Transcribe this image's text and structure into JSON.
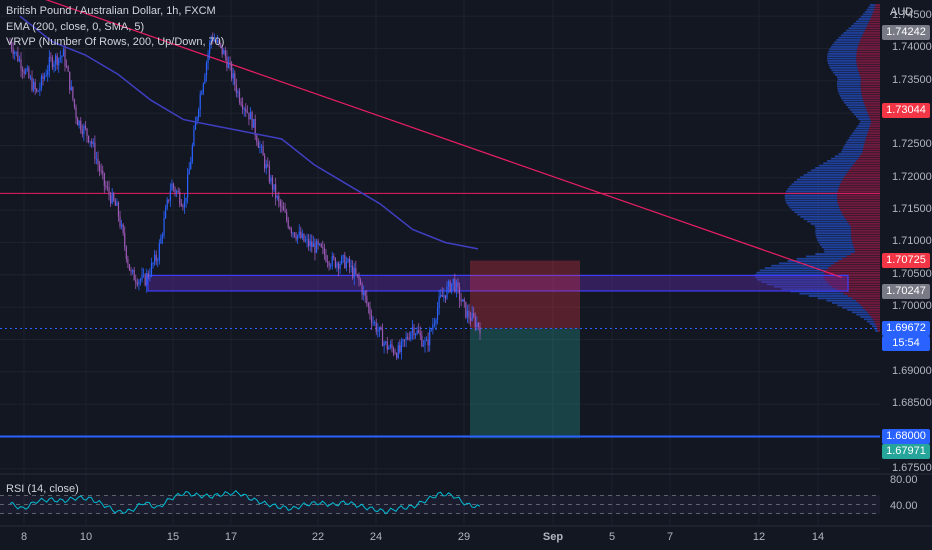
{
  "legend": {
    "title": "British Pound / Australian Dollar, 1h, FXCM",
    "ema": "EMA (200, close, 0, SMA, 5)",
    "vrvp": "VRVP (Number Of Rows, 200, Up/Down, 70)"
  },
  "currency": "AUD",
  "price_ticks": [
    "1.74500",
    "1.74000",
    "1.73500",
    "1.72500",
    "1.72000",
    "1.71500",
    "1.71000",
    "1.70500",
    "1.70000",
    "1.69000",
    "1.68500",
    "1.67500"
  ],
  "price_tags": [
    {
      "label": "1.74242",
      "color": "#787b86"
    },
    {
      "label": "1.73044",
      "color": "#f23645"
    },
    {
      "label": "1.70725",
      "color": "#f23645"
    },
    {
      "label": "1.70247",
      "color": "#787b86"
    },
    {
      "label": "1.69672",
      "color": "#2962ff"
    },
    {
      "label": "15:54",
      "color": "#2962ff"
    },
    {
      "label": "1.68000",
      "color": "#2962ff"
    },
    {
      "label": "1.67971",
      "color": "#26a69a"
    }
  ],
  "time_ticks": [
    "8",
    "10",
    "15",
    "17",
    "22",
    "24",
    "29",
    "Sep",
    "5",
    "7",
    "12",
    "14"
  ],
  "rsi": {
    "label": "RSI (14, close)",
    "ticks": [
      "80.00",
      "40.00"
    ]
  },
  "colors": {
    "background": "#131722",
    "candle_up": "#2962ff",
    "candle_down": "#9b59b6",
    "ema": "#3f3fc2",
    "trendline": "#e91e63",
    "horizontal_line": "#e91e63",
    "support_line": "#2962ff",
    "zone": "#5b2a9f",
    "stop_zone": "#f23645",
    "target_zone": "#26a69a",
    "rsi_line": "#00bcd4"
  },
  "chart_data": {
    "type": "candlestick",
    "symbol": "GBPAUD",
    "timeframe": "1h",
    "x": [
      "8",
      "10",
      "15",
      "17",
      "22",
      "24",
      "29"
    ],
    "close_path": [
      1.741,
      1.737,
      1.733,
      1.738,
      1.739,
      1.729,
      1.726,
      1.719,
      1.715,
      1.705,
      1.704,
      1.708,
      1.719,
      1.716,
      1.731,
      1.742,
      1.739,
      1.733,
      1.729,
      1.722,
      1.716,
      1.712,
      1.71,
      1.709,
      1.707,
      1.707,
      1.704,
      1.698,
      1.694,
      1.693,
      1.697,
      1.694,
      1.701,
      1.704,
      1.699,
      1.697
    ],
    "ema200_path": [
      1.745,
      1.741,
      1.739,
      1.736,
      1.732,
      1.729,
      1.728,
      1.727,
      1.726,
      1.722,
      1.719,
      1.716,
      1.712,
      1.71,
      1.709
    ],
    "trendline": {
      "from": {
        "x": "8",
        "y": 1.7495
      },
      "to": {
        "x": "14",
        "y": 1.7046
      }
    },
    "horizontal_levels": [
      1.7176,
      1.6967,
      1.68
    ],
    "zone": {
      "from": 1.7025,
      "to": 1.7049
    },
    "position": {
      "entry": 1.6967,
      "stop": 1.7072,
      "target": 1.6797
    },
    "current_price": 1.69672,
    "ylim": [
      1.6745,
      1.7475
    ],
    "rsi_series": [
      52,
      40,
      58,
      61,
      58,
      65,
      63,
      49,
      33,
      36,
      55,
      42,
      64,
      76,
      70,
      68,
      74,
      76,
      62,
      52,
      45,
      40,
      50,
      54,
      49,
      55,
      47,
      40,
      34,
      42,
      45,
      60,
      74,
      70,
      50,
      44
    ],
    "rsi_ylim": [
      0,
      100
    ],
    "rsi_levels": [
      70,
      50,
      30
    ]
  }
}
